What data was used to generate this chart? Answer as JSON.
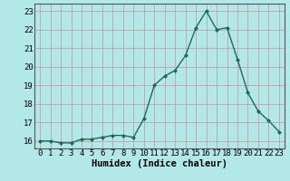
{
  "x": [
    0,
    1,
    2,
    3,
    4,
    5,
    6,
    7,
    8,
    9,
    10,
    11,
    12,
    13,
    14,
    15,
    16,
    17,
    18,
    19,
    20,
    21,
    22,
    23
  ],
  "y": [
    16.0,
    16.0,
    15.9,
    15.9,
    16.1,
    16.1,
    16.2,
    16.3,
    16.3,
    16.2,
    17.2,
    19.0,
    19.5,
    19.8,
    20.6,
    22.1,
    23.0,
    22.0,
    22.1,
    20.4,
    18.6,
    17.6,
    17.1,
    16.5
  ],
  "line_color": "#1a6b5a",
  "marker": "D",
  "marker_size": 2.0,
  "bg_color": "#b2e8e8",
  "grid_color": "#c8a0a0",
  "xlabel": "Humidex (Indice chaleur)",
  "ylim": [
    15.6,
    23.4
  ],
  "xlim": [
    -0.5,
    23.5
  ],
  "yticks": [
    16,
    17,
    18,
    19,
    20,
    21,
    22,
    23
  ],
  "xticks": [
    0,
    1,
    2,
    3,
    4,
    5,
    6,
    7,
    8,
    9,
    10,
    11,
    12,
    13,
    14,
    15,
    16,
    17,
    18,
    19,
    20,
    21,
    22,
    23
  ],
  "font_size_xlabel": 7.5,
  "font_size_ticks": 6.5,
  "spine_color": "#555555",
  "line_width": 1.0
}
